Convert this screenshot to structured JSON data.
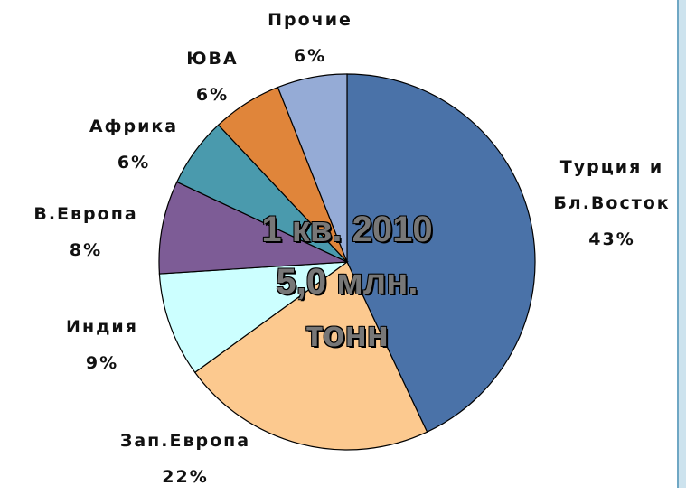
{
  "chart_data": {
    "type": "pie",
    "center_label": [
      "1 кв. 2010",
      "5,0 млн.",
      "тонн"
    ],
    "categories": [
      "Турция и Бл.Восток",
      "Зап.Европа",
      "Индия",
      "В.Европа",
      "Африка",
      "ЮВА",
      "Прочие"
    ],
    "values": [
      43,
      22,
      9,
      8,
      6,
      6,
      6
    ],
    "value_labels": [
      "43%",
      "22%",
      "9%",
      "8%",
      "6%",
      "6%",
      "6%"
    ],
    "colors": [
      "#4a72a8",
      "#fcc98f",
      "#ccffff",
      "#7d5c96",
      "#4a9aad",
      "#e0853a",
      "#95abd6"
    ]
  }
}
